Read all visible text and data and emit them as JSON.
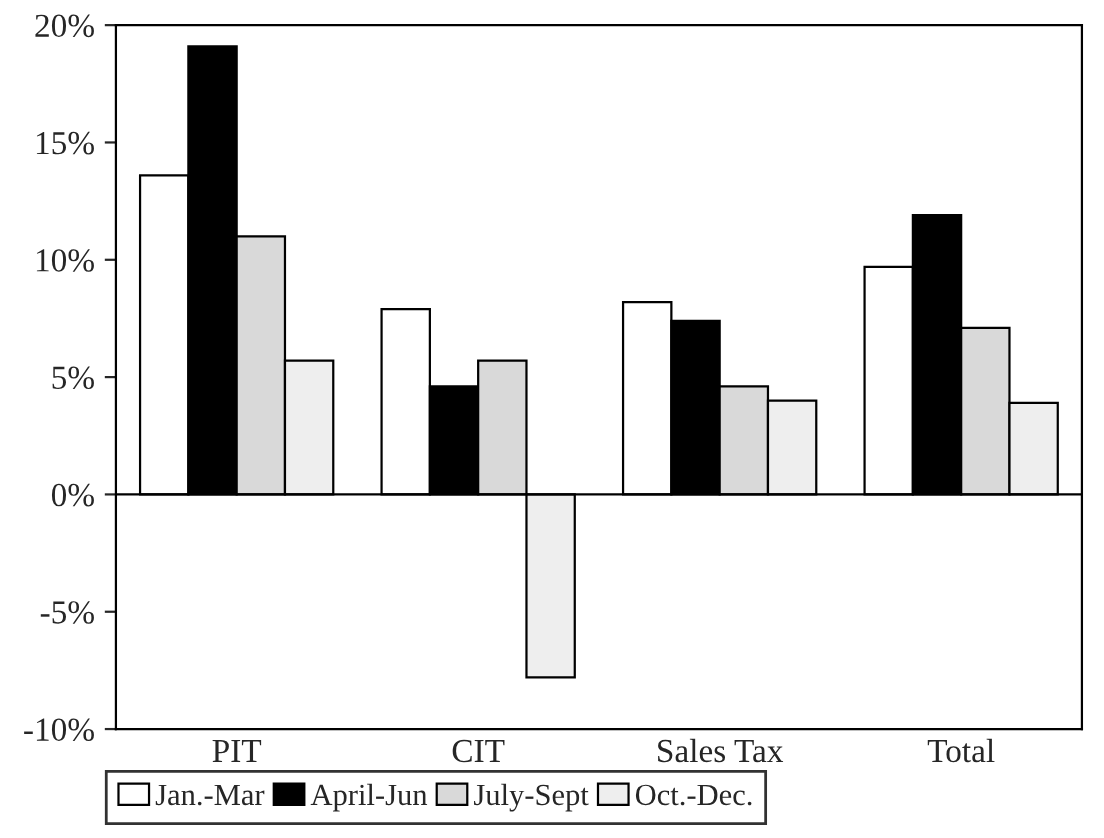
{
  "chart_data": {
    "type": "bar",
    "categories": [
      "PIT",
      "CIT",
      "Sales Tax",
      "Total"
    ],
    "series": [
      {
        "name": "Jan.-Mar",
        "color": "#ffffff",
        "values": [
          13.6,
          7.9,
          8.2,
          9.7
        ]
      },
      {
        "name": "April-Jun",
        "color": "#000000",
        "values": [
          19.1,
          4.6,
          7.4,
          11.9
        ]
      },
      {
        "name": "July-Sept",
        "color": "#d9d9d9",
        "values": [
          11.0,
          5.7,
          4.6,
          7.1
        ]
      },
      {
        "name": "Oct.-Dec.",
        "color": "#eeeeee",
        "values": [
          5.7,
          -7.8,
          4.0,
          3.9
        ]
      }
    ],
    "ylim": [
      -10,
      20
    ],
    "yticks": [
      {
        "value": -10,
        "label": "-10%"
      },
      {
        "value": -5,
        "label": "-5%"
      },
      {
        "value": 0,
        "label": "0%"
      },
      {
        "value": 5,
        "label": "5%"
      },
      {
        "value": 10,
        "label": "10%"
      },
      {
        "value": 15,
        "label": "15%"
      },
      {
        "value": 20,
        "label": "20%"
      }
    ],
    "grid": false,
    "ref_lines": [
      {
        "axis": "y",
        "value": 0
      }
    ],
    "legend": "bottom"
  }
}
